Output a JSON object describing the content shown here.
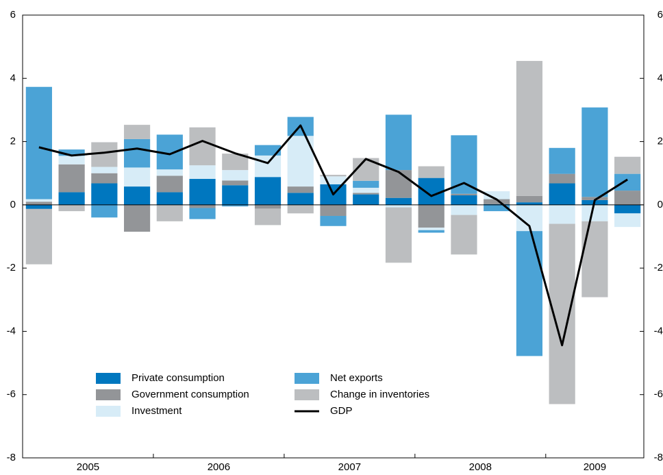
{
  "chart_data": {
    "type": "bar",
    "stacked": true,
    "categories": [
      "2005",
      null,
      null,
      null,
      "2006",
      null,
      null,
      null,
      "2007",
      null,
      null,
      null,
      "2008",
      null,
      null,
      null,
      "2009",
      null,
      null
    ],
    "series": [
      {
        "name": "Private consumption",
        "color": "#0077bf",
        "values": [
          -0.13,
          0.4,
          0.68,
          0.58,
          0.4,
          0.82,
          0.62,
          0.88,
          0.38,
          0.65,
          0.33,
          0.22,
          0.85,
          0.3,
          0.02,
          0.08,
          0.68,
          0.15,
          -0.27
        ]
      },
      {
        "name": "Government consumption",
        "color": "#939598",
        "values": [
          0.1,
          0.88,
          0.32,
          -0.85,
          0.52,
          -0.1,
          0.15,
          -0.12,
          0.2,
          -0.35,
          0.05,
          0.88,
          -0.72,
          0.05,
          0.16,
          0.2,
          0.3,
          0.1,
          0.45
        ]
      },
      {
        "name": "Investment",
        "color": "#d7ecf7",
        "values": [
          0.08,
          0.27,
          0.2,
          0.6,
          0.2,
          0.43,
          0.33,
          0.68,
          1.6,
          0.25,
          0.16,
          -0.08,
          -0.08,
          -0.32,
          0.25,
          -0.83,
          -0.6,
          -0.52,
          -0.43
        ]
      },
      {
        "name": "Net exports",
        "color": "#4ba3d6",
        "values": [
          3.55,
          0.2,
          -0.4,
          0.9,
          1.1,
          -0.35,
          -0.05,
          0.33,
          0.6,
          -0.32,
          0.22,
          1.75,
          -0.08,
          1.85,
          -0.2,
          -3.95,
          0.82,
          2.83,
          0.53
        ]
      },
      {
        "name": "Change in inventories",
        "color": "#bcbec0",
        "values": [
          -1.75,
          -0.2,
          0.78,
          0.45,
          -0.52,
          1.2,
          0.52,
          -0.52,
          -0.27,
          0.05,
          0.72,
          -1.75,
          0.37,
          -1.25,
          0,
          4.27,
          -5.7,
          -2.4,
          0.54
        ]
      },
      {
        "name": "GDP",
        "type": "line",
        "color": "#000000",
        "values": [
          1.82,
          1.56,
          1.65,
          1.78,
          1.6,
          2.02,
          1.63,
          1.32,
          2.51,
          0.33,
          1.45,
          1.04,
          0.28,
          0.69,
          0.17,
          -0.67,
          -4.44,
          0.15,
          0.8
        ]
      }
    ],
    "ylim": [
      -8,
      6
    ],
    "yticks": [
      -8,
      -6,
      -4,
      -2,
      0,
      2,
      4,
      6
    ],
    "y2lim": [
      -8,
      6
    ],
    "y2ticks": [
      -8,
      -6,
      -4,
      -2,
      0,
      2,
      4,
      6
    ],
    "legend": "lower left",
    "grid": false
  }
}
